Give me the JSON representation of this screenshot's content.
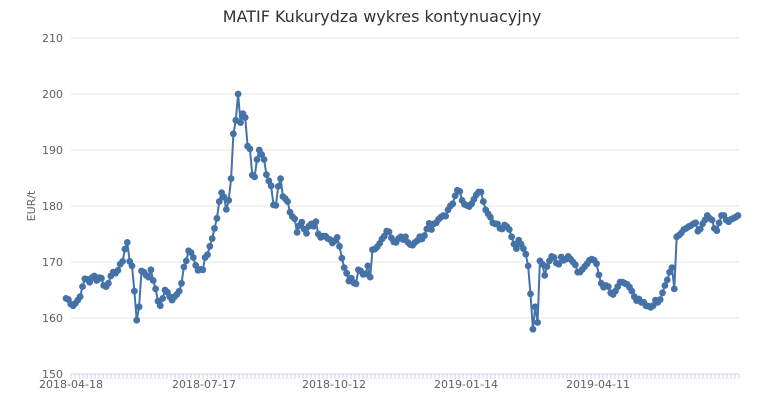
{
  "chart_data": {
    "type": "line",
    "title": "MATIF Kukurydza wykres kontynuacyjny",
    "ylabel": "EUR/t",
    "xlabel": "",
    "ylim": [
      150,
      210
    ],
    "yticks": [
      150,
      160,
      170,
      180,
      190,
      200,
      210
    ],
    "xticks": [
      "2018-04-18",
      "2018-07-17",
      "2018-10-12",
      "2019-01-14",
      "2019-04-11"
    ],
    "grid": true,
    "legend": "none",
    "colors": {
      "series": "#4572a7",
      "grid": "#e6e6e6",
      "axis": "#ccd6eb"
    },
    "series": [
      {
        "values": [
          163.5,
          163.3,
          162.5,
          162.2,
          162.6,
          163.2,
          163.8,
          165.6,
          167.0,
          166.9,
          166.4,
          167.2,
          167.5,
          166.7,
          167.2,
          167.1,
          165.8,
          165.6,
          166.2,
          167.5,
          168.2,
          168.0,
          168.5,
          169.6,
          170.1,
          172.3,
          173.5,
          170.1,
          169.3,
          164.8,
          159.6,
          162.0,
          168.4,
          168.2,
          167.6,
          167.3,
          168.6,
          166.7,
          165.2,
          163.0,
          162.2,
          163.5,
          165.0,
          164.6,
          163.8,
          163.2,
          163.8,
          164.2,
          164.8,
          166.2,
          169.1,
          170.2,
          172.0,
          171.7,
          170.8,
          169.4,
          168.5,
          168.7,
          168.6,
          170.8,
          171.3,
          172.8,
          174.2,
          176.0,
          177.8,
          180.8,
          182.4,
          181.6,
          179.4,
          181.0,
          184.9,
          192.9,
          195.3,
          200.0,
          194.9,
          196.5,
          195.8,
          190.7,
          190.2,
          185.5,
          185.2,
          188.3,
          190.0,
          189.2,
          188.3,
          185.6,
          184.5,
          183.6,
          180.2,
          180.1,
          183.5,
          184.9,
          181.7,
          181.3,
          180.8,
          178.9,
          178.1,
          177.7,
          175.3,
          176.5,
          177.1,
          175.9,
          175.1,
          176.4,
          176.8,
          176.4,
          177.2,
          175.0,
          174.4,
          174.6,
          174.6,
          174.2,
          174.0,
          173.4,
          173.8,
          174.4,
          172.8,
          170.7,
          169.0,
          168.0,
          166.6,
          167.1,
          166.3,
          166.1,
          168.6,
          168.4,
          167.8,
          167.9,
          169.3,
          167.3,
          172.2,
          172.3,
          172.7,
          173.3,
          174.1,
          174.6,
          175.5,
          175.4,
          174.3,
          173.6,
          173.5,
          174.2,
          174.5,
          174.0,
          174.5,
          173.5,
          173.1,
          173.0,
          173.5,
          173.8,
          174.5,
          174.1,
          174.7,
          175.9,
          176.9,
          175.8,
          176.8,
          177.0,
          177.6,
          178.0,
          178.3,
          178.2,
          179.3,
          180.0,
          180.4,
          181.8,
          182.8,
          182.6,
          181.0,
          180.3,
          180.1,
          179.9,
          180.4,
          181.2,
          182.0,
          182.5,
          182.5,
          180.8,
          179.3,
          178.6,
          178.0,
          177.0,
          176.8,
          176.8,
          176.0,
          175.9,
          176.6,
          176.3,
          175.8,
          174.5,
          173.2,
          172.4,
          173.9,
          173.2,
          172.4,
          171.4,
          169.3,
          164.3,
          158.0,
          162.0,
          159.2,
          170.2,
          169.6,
          167.6,
          169.2,
          170.2,
          171.0,
          170.8,
          169.8,
          169.6,
          170.9,
          170.3,
          170.5,
          171.0,
          170.5,
          170.0,
          169.5,
          168.2,
          168.2,
          168.7,
          169.2,
          169.7,
          170.3,
          170.5,
          170.3,
          169.7,
          167.7,
          166.2,
          165.5,
          165.8,
          165.6,
          164.5,
          164.2,
          164.8,
          165.6,
          166.4,
          166.4,
          166.2,
          166.0,
          165.5,
          164.8,
          163.8,
          163.1,
          163.4,
          162.8,
          162.8,
          162.2,
          162.1,
          161.9,
          162.2,
          163.2,
          162.8,
          163.3,
          164.5,
          165.8,
          166.8,
          168.2,
          169.0,
          165.2,
          174.5,
          174.8,
          175.2,
          175.8,
          176.0,
          176.3,
          176.5,
          176.8,
          177.0,
          175.5,
          175.9,
          176.8,
          177.5,
          178.3,
          177.8,
          177.5,
          176.0,
          175.6,
          177.0,
          178.3,
          178.3,
          177.5,
          177.2,
          177.6,
          177.8,
          178.0,
          178.3
        ]
      }
    ]
  }
}
